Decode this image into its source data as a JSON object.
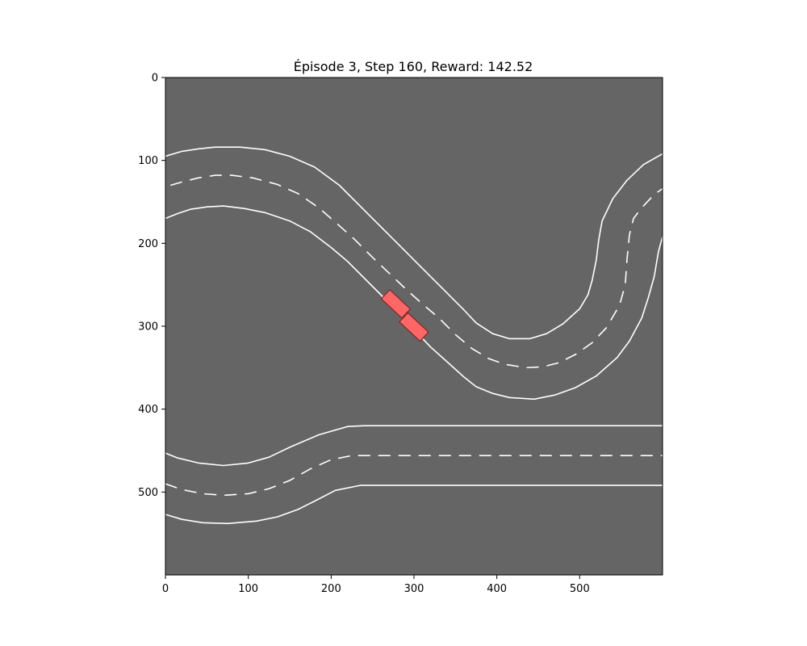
{
  "plot": {
    "title": "Épisode 3, Step 160, Reward: 142.52",
    "xlim": [
      0,
      600
    ],
    "ylim": [
      600,
      0
    ],
    "x_ticks": [
      0,
      100,
      200,
      300,
      400,
      500
    ],
    "y_ticks": [
      0,
      100,
      200,
      300,
      400,
      500
    ],
    "x_tick_labels": [
      "0",
      "100",
      "200",
      "300",
      "400",
      "500"
    ],
    "y_tick_labels": [
      "0",
      "100",
      "200",
      "300",
      "400",
      "500"
    ]
  },
  "colors": {
    "background": "#656565",
    "lane_line": "#ffffff",
    "vehicle_fill": "#ff6666",
    "vehicle_edge": "#7a2a2a"
  },
  "roads": [
    {
      "id": "upper-s-curve",
      "outer_edge": [
        [
          0,
          95
        ],
        [
          20,
          89
        ],
        [
          40,
          86
        ],
        [
          60,
          84
        ],
        [
          90,
          84
        ],
        [
          120,
          87
        ],
        [
          150,
          95
        ],
        [
          180,
          108
        ],
        [
          210,
          130
        ],
        [
          240,
          160
        ],
        [
          270,
          190
        ],
        [
          300,
          220
        ],
        [
          330,
          250
        ],
        [
          360,
          280
        ],
        [
          375,
          296
        ],
        [
          395,
          309
        ],
        [
          415,
          315
        ],
        [
          440,
          315
        ],
        [
          460,
          309
        ],
        [
          480,
          297
        ],
        [
          500,
          279
        ],
        [
          510,
          262
        ],
        [
          515,
          245
        ],
        [
          520,
          220
        ],
        [
          523,
          196
        ],
        [
          527,
          173
        ],
        [
          540,
          146
        ],
        [
          557,
          124
        ],
        [
          577,
          105
        ],
        [
          600,
          92
        ]
      ],
      "center_line": [
        [
          6,
          130
        ],
        [
          20,
          126
        ],
        [
          40,
          121
        ],
        [
          60,
          118
        ],
        [
          80,
          118
        ],
        [
          105,
          121
        ],
        [
          135,
          129
        ],
        [
          160,
          140
        ],
        [
          185,
          157
        ],
        [
          208,
          177
        ],
        [
          228,
          195
        ],
        [
          250,
          217
        ],
        [
          270,
          236
        ],
        [
          290,
          255
        ],
        [
          310,
          273
        ],
        [
          330,
          290
        ],
        [
          350,
          310
        ],
        [
          370,
          327
        ],
        [
          390,
          339
        ],
        [
          410,
          346
        ],
        [
          435,
          350
        ],
        [
          455,
          349
        ],
        [
          475,
          344
        ],
        [
          495,
          334
        ],
        [
          515,
          320
        ],
        [
          532,
          302
        ],
        [
          548,
          275
        ],
        [
          555,
          250
        ],
        [
          557,
          220
        ],
        [
          560,
          190
        ],
        [
          565,
          170
        ],
        [
          575,
          157
        ],
        [
          590,
          141
        ],
        [
          600,
          134
        ]
      ],
      "inner_edge": [
        [
          0,
          170
        ],
        [
          15,
          164
        ],
        [
          30,
          159
        ],
        [
          50,
          156
        ],
        [
          70,
          155
        ],
        [
          95,
          158
        ],
        [
          120,
          163
        ],
        [
          150,
          173
        ],
        [
          175,
          186
        ],
        [
          200,
          205
        ],
        [
          220,
          222
        ],
        [
          240,
          242
        ],
        [
          260,
          262
        ],
        [
          280,
          283
        ],
        [
          300,
          304
        ],
        [
          320,
          325
        ],
        [
          340,
          343
        ],
        [
          360,
          361
        ],
        [
          375,
          373
        ],
        [
          395,
          381
        ],
        [
          415,
          386
        ],
        [
          445,
          388
        ],
        [
          470,
          383
        ],
        [
          495,
          374
        ],
        [
          520,
          360
        ],
        [
          545,
          338
        ],
        [
          560,
          318
        ],
        [
          575,
          290
        ],
        [
          583,
          265
        ],
        [
          590,
          240
        ],
        [
          595,
          210
        ],
        [
          600,
          192
        ]
      ]
    },
    {
      "id": "lower-straight",
      "outer_edge": [
        [
          0,
          453
        ],
        [
          15,
          459
        ],
        [
          40,
          465
        ],
        [
          70,
          468
        ],
        [
          100,
          465
        ],
        [
          125,
          458
        ],
        [
          150,
          446
        ],
        [
          185,
          431
        ],
        [
          220,
          421
        ],
        [
          240,
          420
        ],
        [
          600,
          420
        ]
      ],
      "center_line": [
        [
          0,
          490
        ],
        [
          20,
          497
        ],
        [
          45,
          502
        ],
        [
          70,
          504
        ],
        [
          100,
          502
        ],
        [
          125,
          496
        ],
        [
          150,
          486
        ],
        [
          175,
          472
        ],
        [
          200,
          461
        ],
        [
          225,
          456
        ],
        [
          600,
          456
        ]
      ],
      "inner_edge": [
        [
          0,
          527
        ],
        [
          20,
          533
        ],
        [
          45,
          537
        ],
        [
          75,
          538
        ],
        [
          110,
          535
        ],
        [
          135,
          530
        ],
        [
          160,
          521
        ],
        [
          180,
          511
        ],
        [
          205,
          498
        ],
        [
          235,
          492
        ],
        [
          600,
          492
        ]
      ]
    }
  ],
  "vehicles": [
    {
      "id": "car-1",
      "x": 278,
      "y": 273,
      "heading_deg": 43,
      "length": 34,
      "width": 15
    },
    {
      "id": "car-2",
      "x": 300,
      "y": 301,
      "heading_deg": 43,
      "length": 34,
      "width": 15
    }
  ]
}
